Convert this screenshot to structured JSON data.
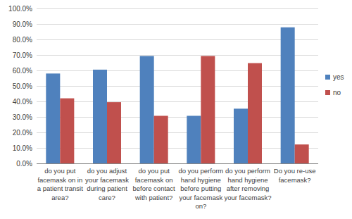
{
  "chart_data": {
    "type": "bar",
    "categories": [
      "do you put facemask on in a patient transit area?",
      "do you adjust your facemask during patient care?",
      "do you put facemask on before contact with patient?",
      "do you perform hand hygiene before putting your facemask on?",
      "do you perform hand hygiene after removing your facemask?",
      "Do you re-use facemask?"
    ],
    "series": [
      {
        "name": "yes",
        "color": "#4f81bd",
        "values": [
          58.0,
          60.5,
          69.3,
          30.7,
          35.3,
          87.8
        ]
      },
      {
        "name": "no",
        "color": "#c0504d",
        "values": [
          42.0,
          39.5,
          30.7,
          69.3,
          64.7,
          12.2
        ]
      }
    ],
    "ylim": [
      0,
      100
    ],
    "yticks": [
      {
        "value": 0,
        "label": "0.0%"
      },
      {
        "value": 10,
        "label": "10.0%"
      },
      {
        "value": 20,
        "label": "20.0%"
      },
      {
        "value": 30,
        "label": "30.0%"
      },
      {
        "value": 40,
        "label": "40.0%"
      },
      {
        "value": 50,
        "label": "50.0%"
      },
      {
        "value": 60,
        "label": "60.0%"
      },
      {
        "value": 70,
        "label": "70.0%"
      },
      {
        "value": 80,
        "label": "80.0%"
      },
      {
        "value": 90,
        "label": "90.0%"
      },
      {
        "value": 100,
        "label": "100.0%"
      }
    ],
    "grid": true,
    "legend": "right"
  }
}
